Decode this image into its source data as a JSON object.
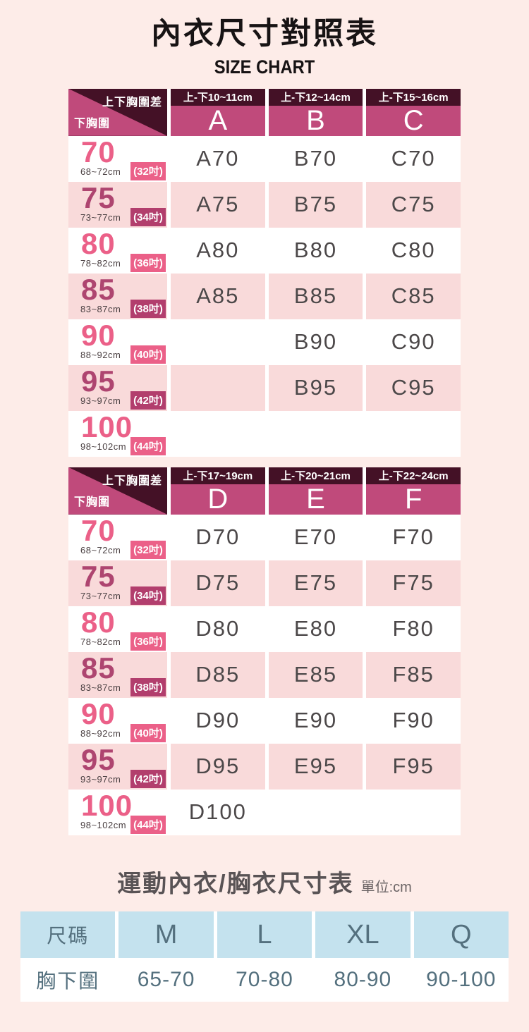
{
  "header": {
    "title": "內衣尺寸對照表",
    "subtitle": "SIZE CHART"
  },
  "size_tables": [
    {
      "corner": {
        "top_right": "上下胸圍差",
        "bottom_left": "下胸圍"
      },
      "columns": [
        {
          "diff": "上-下10~11cm",
          "cup": "A"
        },
        {
          "diff": "上-下12~14cm",
          "cup": "B"
        },
        {
          "diff": "上-下15~16cm",
          "cup": "C"
        }
      ],
      "rows": [
        {
          "size": "70",
          "range": "68~72cm",
          "inch": "(32吋)",
          "cells": [
            "A70",
            "B70",
            "C70"
          ]
        },
        {
          "size": "75",
          "range": "73~77cm",
          "inch": "(34吋)",
          "cells": [
            "A75",
            "B75",
            "C75"
          ]
        },
        {
          "size": "80",
          "range": "78~82cm",
          "inch": "(36吋)",
          "cells": [
            "A80",
            "B80",
            "C80"
          ]
        },
        {
          "size": "85",
          "range": "83~87cm",
          "inch": "(38吋)",
          "cells": [
            "A85",
            "B85",
            "C85"
          ]
        },
        {
          "size": "90",
          "range": "88~92cm",
          "inch": "(40吋)",
          "cells": [
            "",
            "B90",
            "C90"
          ]
        },
        {
          "size": "95",
          "range": "93~97cm",
          "inch": "(42吋)",
          "cells": [
            "",
            "B95",
            "C95"
          ]
        },
        {
          "size": "100",
          "range": "98~102cm",
          "inch": "(44吋)",
          "cells": [
            "",
            "",
            ""
          ]
        }
      ]
    },
    {
      "corner": {
        "top_right": "上下胸圍差",
        "bottom_left": "下胸圍"
      },
      "columns": [
        {
          "diff": "上-下17~19cm",
          "cup": "D"
        },
        {
          "diff": "上-下20~21cm",
          "cup": "E"
        },
        {
          "diff": "上-下22~24cm",
          "cup": "F"
        }
      ],
      "rows": [
        {
          "size": "70",
          "range": "68~72cm",
          "inch": "(32吋)",
          "cells": [
            "D70",
            "E70",
            "F70"
          ]
        },
        {
          "size": "75",
          "range": "73~77cm",
          "inch": "(34吋)",
          "cells": [
            "D75",
            "E75",
            "F75"
          ]
        },
        {
          "size": "80",
          "range": "78~82cm",
          "inch": "(36吋)",
          "cells": [
            "D80",
            "E80",
            "F80"
          ]
        },
        {
          "size": "85",
          "range": "83~87cm",
          "inch": "(38吋)",
          "cells": [
            "D85",
            "E85",
            "F85"
          ]
        },
        {
          "size": "90",
          "range": "88~92cm",
          "inch": "(40吋)",
          "cells": [
            "D90",
            "E90",
            "F90"
          ]
        },
        {
          "size": "95",
          "range": "93~97cm",
          "inch": "(42吋)",
          "cells": [
            "D95",
            "E95",
            "F95"
          ]
        },
        {
          "size": "100",
          "range": "98~102cm",
          "inch": "(44吋)",
          "cells": [
            "D100",
            "",
            ""
          ]
        }
      ]
    }
  ],
  "sport_section": {
    "title": "運動內衣/胸衣尺寸表",
    "unit": "單位:cm",
    "table": {
      "header": [
        "尺碼",
        "M",
        "L",
        "XL",
        "Q"
      ],
      "row_label": "胸下圍",
      "row_values": [
        "65-70",
        "70-80",
        "80-90",
        "90-100"
      ]
    }
  },
  "colors": {
    "page_background": "#fdece8",
    "dark_maroon": "#441126",
    "header_magenta": "#c04a7b",
    "row_pink": "#f9dada",
    "accent_bright_pink": "#eb6088",
    "accent_dark_magenta": "#b23e6d",
    "cell_text": "#4c4849",
    "sport_header_blue": "#c4e2ee",
    "sport_text": "#54707e"
  }
}
